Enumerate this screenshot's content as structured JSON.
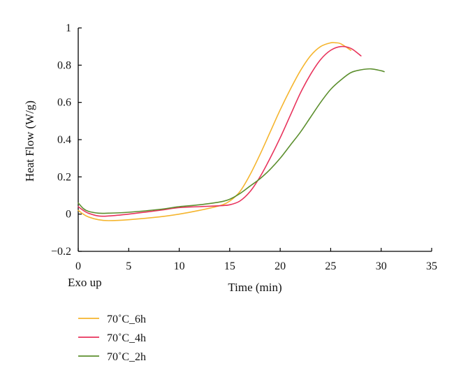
{
  "chart_data": {
    "type": "line",
    "title": "",
    "xlabel": "Time (min)",
    "ylabel": "Heat Flow (W/g)",
    "annotation": "Exo up",
    "xlim": [
      0,
      35
    ],
    "ylim": [
      -0.2,
      1
    ],
    "xticks": [
      0,
      5,
      10,
      15,
      20,
      25,
      30,
      35
    ],
    "xtick_labels": [
      "0",
      "5",
      "10",
      "15",
      "20",
      "25",
      "30",
      "35"
    ],
    "yticks": [
      -0.2,
      0,
      0.2,
      0.4,
      0.6,
      0.8,
      1
    ],
    "ytick_labels": [
      "−0.2",
      "0",
      "0.2",
      "0.4",
      "0.6",
      "0.8",
      "1"
    ],
    "grid": false,
    "legend_position": "bottom-left",
    "series": [
      {
        "name": "70˚C_6h",
        "color": "#f5b52e",
        "x": [
          0,
          0.5,
          1,
          2,
          3,
          5,
          8,
          10,
          12,
          14,
          15,
          16,
          17,
          18,
          19,
          20,
          21,
          22,
          23,
          24,
          25,
          25.5,
          26,
          27
        ],
        "y": [
          0.02,
          0.0,
          -0.015,
          -0.03,
          -0.035,
          -0.03,
          -0.015,
          0.0,
          0.02,
          0.045,
          0.07,
          0.12,
          0.21,
          0.32,
          0.44,
          0.56,
          0.67,
          0.77,
          0.85,
          0.9,
          0.92,
          0.92,
          0.915,
          0.88
        ]
      },
      {
        "name": "70˚C_4h",
        "color": "#e8335c",
        "x": [
          0,
          0.5,
          1,
          2,
          3,
          5,
          8,
          10,
          12,
          14,
          15,
          16,
          17,
          18,
          19,
          20,
          21,
          22,
          23,
          24,
          25,
          26,
          27,
          28
        ],
        "y": [
          0.04,
          0.02,
          0.005,
          -0.01,
          -0.01,
          0.0,
          0.02,
          0.035,
          0.04,
          0.045,
          0.05,
          0.07,
          0.12,
          0.2,
          0.3,
          0.41,
          0.53,
          0.65,
          0.75,
          0.83,
          0.88,
          0.9,
          0.89,
          0.85
        ]
      },
      {
        "name": "70˚C_2h",
        "color": "#5c8f2e",
        "x": [
          0,
          0.5,
          1,
          2,
          3,
          5,
          8,
          10,
          12,
          14,
          15,
          16,
          17,
          18,
          19,
          20,
          21,
          22,
          23,
          24,
          25,
          26,
          27,
          28,
          29,
          30,
          30.3
        ],
        "y": [
          0.06,
          0.03,
          0.015,
          0.005,
          0.005,
          0.01,
          0.025,
          0.04,
          0.05,
          0.065,
          0.08,
          0.11,
          0.15,
          0.19,
          0.24,
          0.3,
          0.37,
          0.44,
          0.52,
          0.6,
          0.67,
          0.72,
          0.76,
          0.775,
          0.78,
          0.77,
          0.765
        ]
      }
    ]
  }
}
